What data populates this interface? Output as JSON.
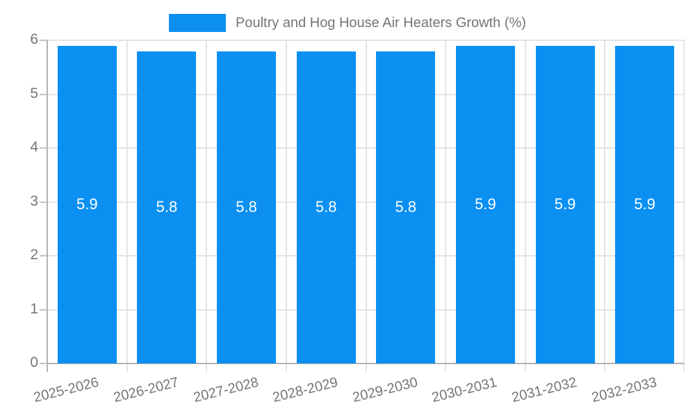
{
  "legend": {
    "label": "Poultry and Hog House Air Heaters Growth (%)"
  },
  "chart_data": {
    "type": "bar",
    "title": "Poultry and Hog House Air Heaters Growth (%)",
    "series_name": "Poultry and Hog House Air Heaters Growth (%)",
    "categories": [
      "2025-2026",
      "2026-2027",
      "2027-2028",
      "2028-2029",
      "2029-2030",
      "2030-2031",
      "2031-2032",
      "2032-2033"
    ],
    "values": [
      5.9,
      5.8,
      5.8,
      5.8,
      5.8,
      5.9,
      5.9,
      5.9
    ],
    "bar_labels": [
      "5.9",
      "5.8",
      "5.8",
      "5.8",
      "5.8",
      "5.9",
      "5.9",
      "5.9"
    ],
    "ylim": [
      0,
      6
    ],
    "yticks": [
      0,
      1,
      2,
      3,
      4,
      5,
      6
    ],
    "ytick_labels": [
      "0",
      "1",
      "2",
      "3",
      "4",
      "5",
      "6"
    ],
    "grid": true,
    "legend_position": "top",
    "xlabel": "",
    "ylabel": "",
    "colors": {
      "bar": "#0b90f2",
      "bar_value_text": "#ffffff",
      "axis_text": "#757575",
      "grid_line": "#e4e4e4",
      "axis_line": "#b3b3b3",
      "tick_mark": "#c4c4c4"
    }
  }
}
